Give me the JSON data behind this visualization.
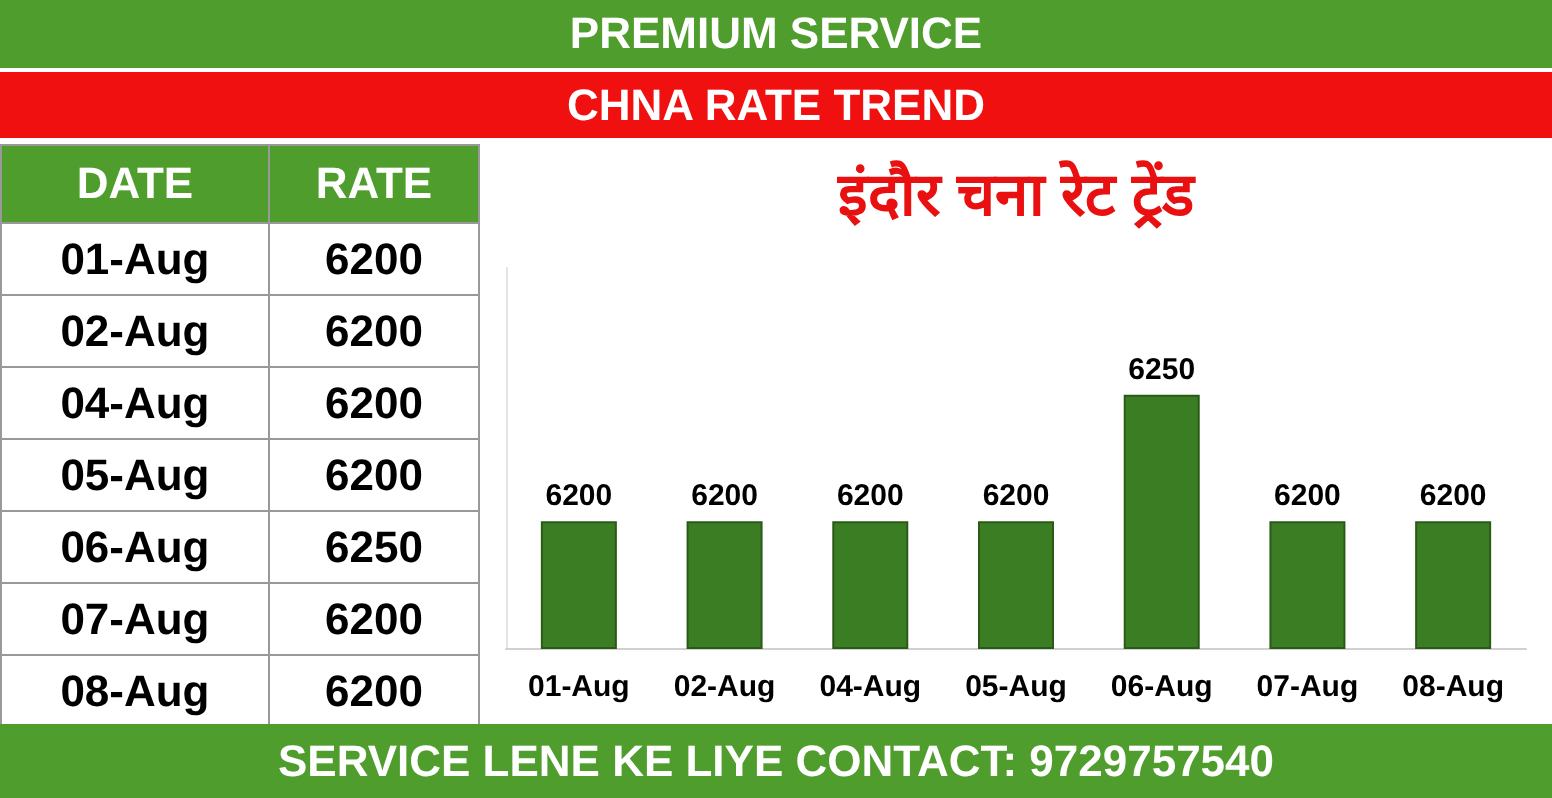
{
  "chart_data": [
    {
      "type": "other",
      "xlabel": "DATE",
      "ylabel": "RATE",
      "categories": [
        "01-Aug",
        "02-Aug",
        "04-Aug",
        "05-Aug",
        "06-Aug",
        "07-Aug",
        "08-Aug"
      ],
      "value_labels": [
        "6200",
        "6200",
        "6200",
        "6200",
        "6250",
        "6200",
        "6200"
      ]
    },
    {
      "type": "bar",
      "title": "CHNA RATE TREND",
      "subtitle": "इंदौर चना रेट ट्रेंड",
      "annotations": [
        "PREMIUM SERVICE",
        "SERVICE LENE KE LIYE CONTACT: 9729757540"
      ],
      "categories": [
        "01-Aug",
        "02-Aug",
        "04-Aug",
        "05-Aug",
        "06-Aug",
        "07-Aug",
        "08-Aug"
      ],
      "values": [
        6200,
        6200,
        6200,
        6200,
        6250,
        6200,
        6200
      ],
      "color": "#3b7d23",
      "ylim": [
        6150,
        6300
      ],
      "data_labels": true,
      "grid": false,
      "tick_labels": "x"
    }
  ]
}
